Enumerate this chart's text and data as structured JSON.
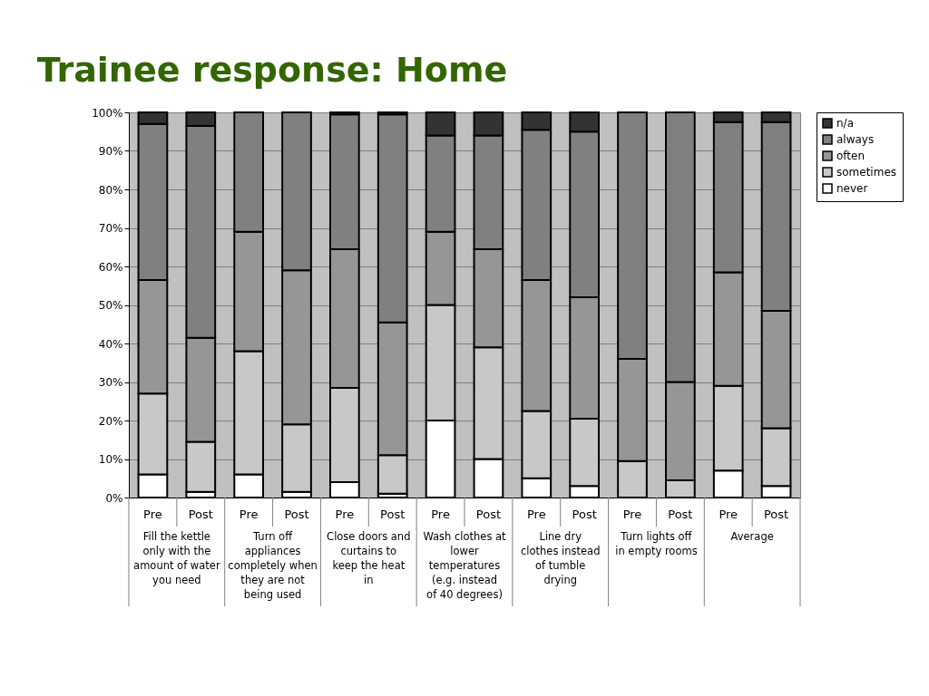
{
  "chart_data": {
    "type": "bar",
    "title": "Trainee response: Home",
    "stacked": true,
    "categories": [
      "Pre",
      "Post",
      "Pre",
      "Post",
      "Pre",
      "Post",
      "Pre",
      "Post",
      "Pre",
      "Post",
      "Pre",
      "Post",
      "Pre",
      "Post"
    ],
    "series": [
      {
        "name": "never",
        "color": "#ffffff",
        "values": [
          6,
          1.5,
          6,
          1.5,
          4,
          1,
          20,
          10,
          5,
          3,
          null,
          0,
          7,
          3
        ]
      },
      {
        "name": "sometimes",
        "color": "#c8c8c8",
        "values": [
          21,
          13,
          32,
          17.5,
          24.5,
          10,
          30,
          29,
          17.5,
          17.5,
          9.5,
          4.5,
          22,
          15
        ]
      },
      {
        "name": "often",
        "color": "#969696",
        "values": [
          29.5,
          27,
          31,
          40,
          36,
          34.5,
          19,
          25.5,
          34,
          31.5,
          26.5,
          25.5,
          29.5,
          30.5
        ]
      },
      {
        "name": "always",
        "color": "#808080",
        "values": [
          40.5,
          55,
          31,
          41,
          35,
          54,
          25,
          29.5,
          39,
          43,
          64,
          70,
          39,
          49
        ]
      },
      {
        "name": "n/a",
        "color": "#333333",
        "values": [
          3,
          3.5,
          0,
          0,
          0.5,
          0.5,
          6,
          6,
          4.5,
          5,
          0,
          0,
          2.5,
          2.5
        ]
      }
    ],
    "annotations": [
      "Fill the kettle only with the amount of water you need",
      "Turn off appliances completely when they are not being used",
      "Close doors and curtains to keep the heat in",
      "Wash clothes at lower temperatures (e.g. instead of 40 degrees)",
      "Line dry clothes instead of tumble drying",
      "Turn lights off in empty rooms",
      "Average"
    ],
    "ylim": [
      0,
      100
    ],
    "yticks": [
      {
        "value": 0,
        "label": "0%"
      },
      {
        "value": 10,
        "label": "10%"
      },
      {
        "value": 20,
        "label": "20%"
      },
      {
        "value": 30,
        "label": "30%"
      },
      {
        "value": 40,
        "label": "40%"
      },
      {
        "value": 50,
        "label": "50%"
      },
      {
        "value": 60,
        "label": "60%"
      },
      {
        "value": 70,
        "label": "70%"
      },
      {
        "value": 80,
        "label": "80%"
      },
      {
        "value": 90,
        "label": "90%"
      },
      {
        "value": 100,
        "label": "100%"
      }
    ],
    "grid": "y",
    "legend": "right"
  }
}
